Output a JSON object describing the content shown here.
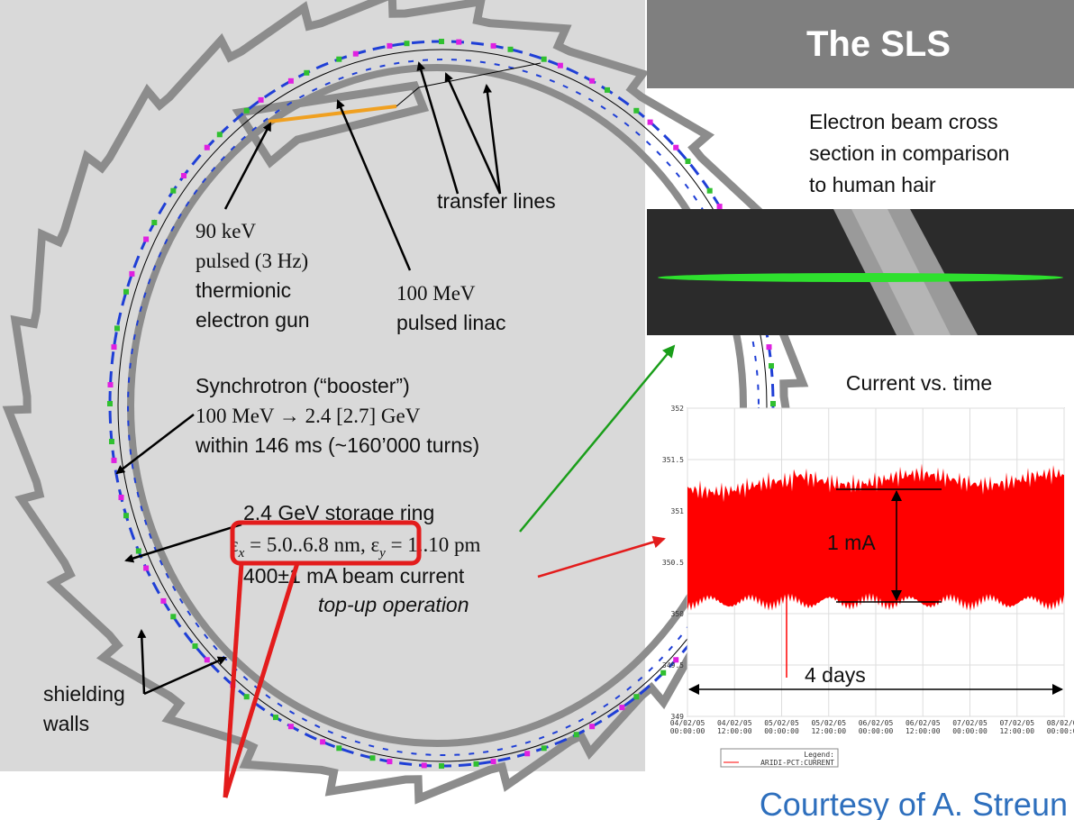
{
  "title": "The SLS",
  "hair_caption": [
    "Electron beam cross",
    "section in comparison",
    "to human hair"
  ],
  "labels": {
    "transfer": "transfer lines",
    "gun": [
      "90 keV",
      "pulsed (3 Hz)",
      "thermionic",
      "electron gun"
    ],
    "linac": [
      "100 MeV",
      "pulsed linac"
    ],
    "booster": [
      "Synchrotron (“booster”)",
      "100 MeV → 2.4 [2.7] GeV",
      "within 146 ms (~160’000 turns)"
    ],
    "ring": [
      "2.4 GeV storage ring",
      "400±1 mA beam current",
      "top-up operation"
    ],
    "emittance": [
      "ε",
      "x",
      " = 5.0..6.8 nm, ",
      "ε",
      "y",
      " = 1..10 pm"
    ],
    "walls": [
      "shielding",
      "walls"
    ]
  },
  "plot": {
    "title": "Current vs. time",
    "yticks": [
      "352",
      "351.5",
      "351",
      "350.5",
      "350",
      "349.5",
      "349"
    ],
    "xticks": [
      [
        "04/02/05",
        "00:00:00"
      ],
      [
        "04/02/05",
        "12:00:00"
      ],
      [
        "05/02/05",
        "00:00:00"
      ],
      [
        "05/02/05",
        "12:00:00"
      ],
      [
        "06/02/05",
        "00:00:00"
      ],
      [
        "06/02/05",
        "12:00:00"
      ],
      [
        "07/02/05",
        "00:00:00"
      ],
      [
        "07/02/05",
        "12:00:00"
      ],
      [
        "08/02/05",
        "00:00:00"
      ]
    ],
    "legend_title": "Legend:",
    "legend_entry": "ARIDI-PCT:CURRENT",
    "span_label": "1 mA",
    "time_label": "4 days"
  },
  "credit": "Courtesy of A. Streun"
}
